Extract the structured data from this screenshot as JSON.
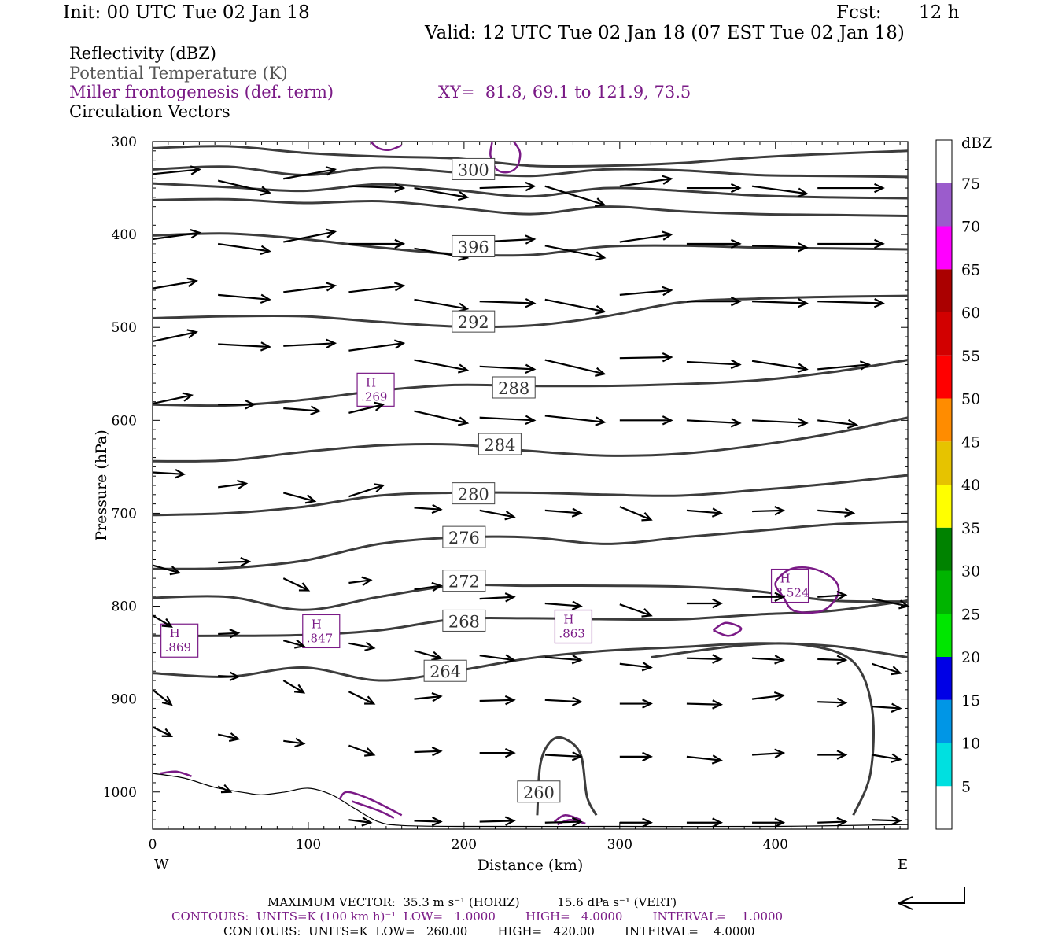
{
  "header": {
    "init": "Init: 00 UTC Tue 02 Jan 18",
    "fcst_label": "Fcst:",
    "fcst_value": "12 h",
    "valid": "Valid: 12 UTC Tue 02 Jan 18 (07 EST Tue 02 Jan 18)"
  },
  "fields": {
    "reflectivity": "Reflectivity (dBZ)",
    "theta": "Potential Temperature (K)",
    "miller": "Miller frontogenesis (def. term)",
    "xy": "XY=  81.8, 69.1 to 121.9, 73.5",
    "vectors": "Circulation Vectors"
  },
  "footer": {
    "max_vector": "MAXIMUM VECTOR:  35.3 m s⁻¹ (HORIZ)          15.6 dPa s⁻¹ (VERT)",
    "contours_fronto": "CONTOURS:  UNITS=K (100 km h)⁻¹  LOW=   1.0000        HIGH=   4.0000        INTERVAL=    1.0000",
    "contours_theta": "CONTOURS:  UNITS=K  LOW=   260.00        HIGH=   420.00        INTERVAL=    4.0000"
  },
  "colors": {
    "theta": "#3c3c3c",
    "fronto": "#7a1a86",
    "vector": "#000000"
  },
  "chart_data": {
    "type": "cross-section",
    "xlabel": "Distance (km)",
    "ylabel": "Pressure (hPa)",
    "xlim": [
      0,
      485
    ],
    "ylim": [
      1040,
      300
    ],
    "x_ticks": [
      0,
      100,
      200,
      300,
      400
    ],
    "y_ticks": [
      300,
      400,
      500,
      600,
      700,
      800,
      900,
      1000
    ],
    "x_end_labels": {
      "left": "W",
      "right": "E"
    },
    "theta_contours": [
      {
        "label": "300",
        "x": 206,
        "p": [
          307,
          305,
          312,
          316,
          318,
          326,
          326,
          323,
          317,
          313,
          310
        ]
      },
      {
        "label": "396",
        "x": 206,
        "p": [
          401,
          399,
          405,
          414,
          421,
          422,
          413,
          412,
          414,
          415,
          416
        ]
      },
      {
        "label": "292",
        "x": 206,
        "p": [
          490,
          488,
          488,
          494,
          499,
          498,
          488,
          473,
          469,
          467,
          466
        ]
      },
      {
        "label": "288",
        "x": 232,
        "p": [
          583,
          584,
          578,
          568,
          562,
          563,
          563,
          561,
          557,
          548,
          535
        ]
      },
      {
        "label": "284",
        "x": 223,
        "p": [
          644,
          643,
          634,
          627,
          626,
          633,
          638,
          636,
          627,
          614,
          597
        ]
      },
      {
        "label": "280",
        "x": 206,
        "p": [
          702,
          700,
          693,
          681,
          678,
          678,
          680,
          681,
          675,
          668,
          659
        ]
      },
      {
        "label": "276",
        "x": 200,
        "p": [
          760,
          759,
          751,
          733,
          726,
          726,
          733,
          726,
          719,
          712,
          709
        ]
      },
      {
        "label": "272",
        "x": 200,
        "p": [
          791,
          790,
          804,
          790,
          778,
          778,
          778,
          779,
          784,
          794,
          795
        ]
      },
      {
        "label": "268",
        "x": 200,
        "p": [
          832,
          832,
          831,
          826,
          814,
          813,
          814,
          814,
          809,
          805,
          794
        ]
      },
      {
        "label": "264",
        "x": 188,
        "p": [
          872,
          876,
          866,
          880,
          870,
          856,
          848,
          844,
          840,
          843,
          855
        ]
      },
      {
        "label": "260",
        "x": 248,
        "p": []
      }
    ],
    "frontogenesis_maxima": [
      {
        "label": "H",
        "value": ".869",
        "x": 17,
        "p": 837
      },
      {
        "label": "H",
        "value": ".847",
        "x": 108,
        "p": 827
      },
      {
        "label": "H",
        "value": ".269",
        "x": 143,
        "p": 567
      },
      {
        "label": "H",
        "value": ".863",
        "x": 270,
        "p": 822
      },
      {
        "label": "H",
        "value": "3.524",
        "x": 409,
        "p": 778
      }
    ],
    "colorbar": {
      "title": "dBZ",
      "labels": [
        "5",
        "10",
        "15",
        "20",
        "25",
        "30",
        "35",
        "40",
        "45",
        "50",
        "55",
        "60",
        "65",
        "70",
        "75"
      ],
      "colors": [
        "#ffffff",
        "#00e0e0",
        "#0096e6",
        "#0000e6",
        "#00e600",
        "#00b400",
        "#008200",
        "#ffff00",
        "#e6c300",
        "#ff8c00",
        "#ff0000",
        "#d20000",
        "#aa0000",
        "#ff00ff",
        "#9b5ccc",
        "#ffffff"
      ]
    }
  }
}
